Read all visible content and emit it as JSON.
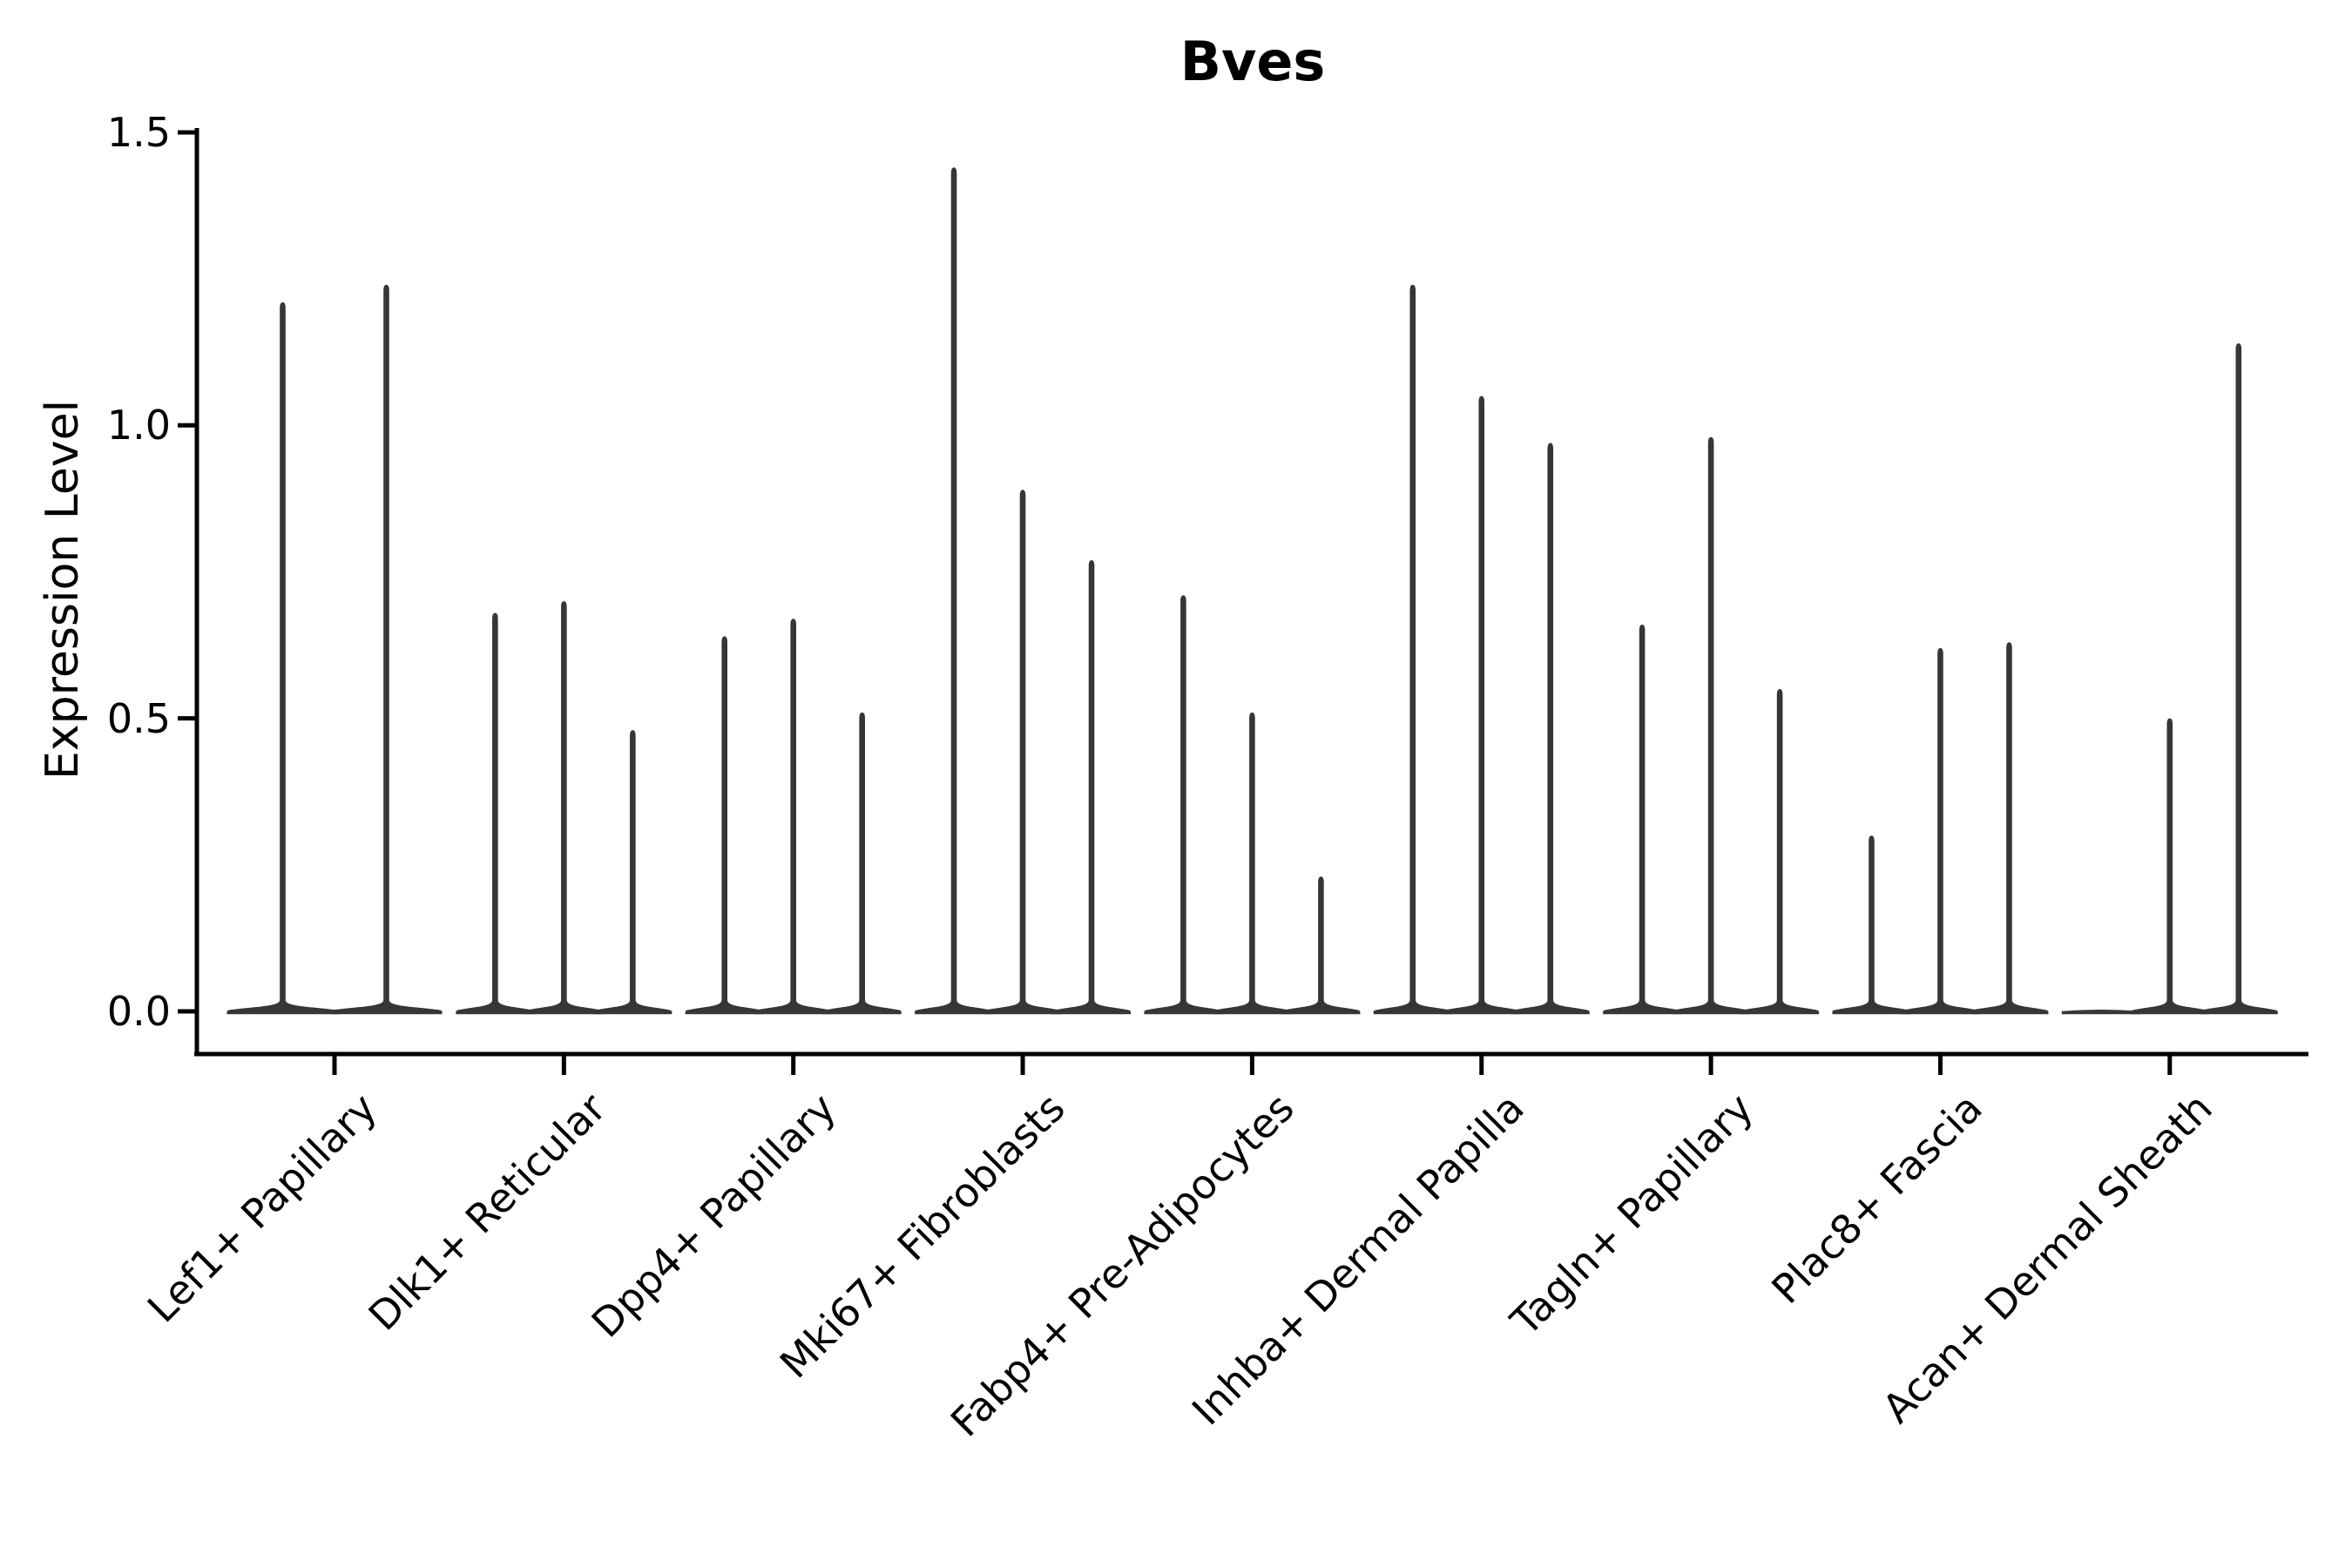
{
  "title": "Bves",
  "y_axis": {
    "label": "Expression Level",
    "tick_labels": [
      "0.0",
      "0.5",
      "1.0",
      "1.5"
    ]
  },
  "colors": {
    "violin": "#363636",
    "axis": "#000000",
    "background": "#ffffff"
  },
  "chart_data": {
    "type": "violin",
    "title": "Bves",
    "xlabel": "",
    "ylabel": "Expression Level",
    "ylim": [
      -0.07,
      1.5
    ],
    "yticks": [
      0.0,
      0.5,
      1.0,
      1.5
    ],
    "grid": false,
    "legend": "none",
    "description": "Stacked thin violin plot of Bves expression per fibroblast cluster; each cluster shows 2-3 sub-violins (samples). Values are the maximum expression reached by each sub-violin; bulk of cells sit at 0 giving flat bases with thin spikes.",
    "categories": [
      "Lef1+ Papillary",
      "Dlk1+ Reticular",
      "Dpp4+ Papillary",
      "Mki67+ Fibroblasts",
      "Fabp4+ Pre-Adipocytes",
      "Inhba+ Dermal Papilla",
      "Tagln+ Papillary",
      "Plac8+ Fascia",
      "Acan+ Dermal Sheath"
    ],
    "groups": [
      {
        "label": "Lef1+ Papillary",
        "violin_max_values": [
          1.21,
          1.24
        ]
      },
      {
        "label": "Dlk1+ Reticular",
        "violin_max_values": [
          0.68,
          0.7,
          0.48
        ]
      },
      {
        "label": "Dpp4+ Papillary",
        "violin_max_values": [
          0.64,
          0.67,
          0.51
        ]
      },
      {
        "label": "Mki67+ Fibroblasts",
        "violin_max_values": [
          1.44,
          0.89,
          0.77
        ]
      },
      {
        "label": "Fabp4+ Pre-Adipocytes",
        "violin_max_values": [
          0.71,
          0.51,
          0.23
        ]
      },
      {
        "label": "Inhba+ Dermal Papilla",
        "violin_max_values": [
          1.24,
          1.05,
          0.97
        ]
      },
      {
        "label": "Tagln+ Papillary",
        "violin_max_values": [
          0.66,
          0.98,
          0.55
        ]
      },
      {
        "label": "Plac8+ Fascia",
        "violin_max_values": [
          0.3,
          0.62,
          0.63
        ]
      },
      {
        "label": "Acan+ Dermal Sheath",
        "violin_max_values": [
          0.0,
          0.5,
          1.14
        ]
      }
    ]
  }
}
